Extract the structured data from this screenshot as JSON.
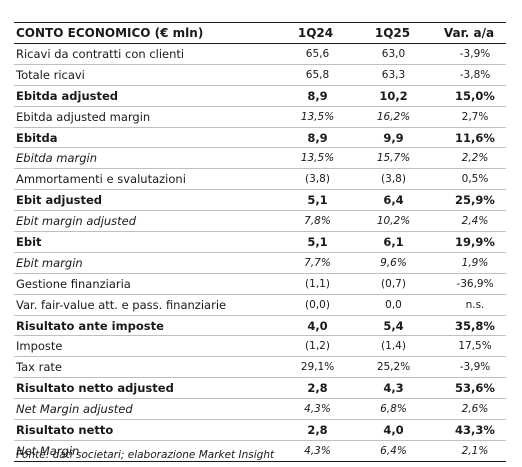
{
  "table": {
    "headers": [
      "CONTO ECONOMICO (€ mln)",
      "1Q24",
      "1Q25",
      "Var. a/a"
    ],
    "rows": [
      {
        "label": "Ricavi da contratti con clienti",
        "v1": "65,6",
        "v2": "63,0",
        "v3": "-3,9%",
        "style": "normal"
      },
      {
        "label": "Totale ricavi",
        "v1": "65,8",
        "v2": "63,3",
        "v3": "-3,8%",
        "style": "normal"
      },
      {
        "label": "Ebitda adjusted",
        "v1": "8,9",
        "v2": "10,2",
        "v3": "15,0%",
        "style": "bold"
      },
      {
        "label": "Ebitda adjusted margin",
        "v1": "13,5%",
        "v2": "16,2%",
        "v3": "2,7%",
        "style": "normal-italic-nums"
      },
      {
        "label": "Ebitda",
        "v1": "8,9",
        "v2": "9,9",
        "v3": "11,6%",
        "style": "bold"
      },
      {
        "label": "Ebitda margin",
        "v1": "13,5%",
        "v2": "15,7%",
        "v3": "2,2%",
        "style": "italic"
      },
      {
        "label": "Ammortamenti e svalutazioni",
        "v1": "(3,8)",
        "v2": "(3,8)",
        "v3": "0,5%",
        "style": "normal"
      },
      {
        "label": "Ebit adjusted",
        "v1": "5,1",
        "v2": "6,4",
        "v3": "25,9%",
        "style": "bold"
      },
      {
        "label": "Ebit margin adjusted",
        "v1": "7,8%",
        "v2": "10,2%",
        "v3": "2,4%",
        "style": "italic"
      },
      {
        "label": "Ebit",
        "v1": "5,1",
        "v2": "6,1",
        "v3": "19,9%",
        "style": "bold"
      },
      {
        "label": "Ebit margin",
        "v1": "7,7%",
        "v2": "9,6%",
        "v3": "1,9%",
        "style": "italic"
      },
      {
        "label": "Gestione finanziaria",
        "v1": "(1,1)",
        "v2": "(0,7)",
        "v3": "-36,9%",
        "style": "normal"
      },
      {
        "label": "Var. fair-value att. e pass. finanziarie",
        "v1": "(0,0)",
        "v2": "0,0",
        "v3": "n.s.",
        "style": "normal"
      },
      {
        "label": "Risultato ante imposte",
        "v1": "4,0",
        "v2": "5,4",
        "v3": "35,8%",
        "style": "bold"
      },
      {
        "label": "Imposte",
        "v1": "(1,2)",
        "v2": "(1,4)",
        "v3": "17,5%",
        "style": "normal"
      },
      {
        "label": "Tax rate",
        "v1": "29,1%",
        "v2": "25,2%",
        "v3": "-3,9%",
        "style": "normal"
      },
      {
        "label": "Risultato netto adjusted",
        "v1": "2,8",
        "v2": "4,3",
        "v3": "53,6%",
        "style": "bold"
      },
      {
        "label": "Net Margin adjusted",
        "v1": "4,3%",
        "v2": "6,8%",
        "v3": "2,6%",
        "style": "italic"
      },
      {
        "label": "Risultato netto",
        "v1": "2,8",
        "v2": "4,0",
        "v3": "43,3%",
        "style": "bold"
      },
      {
        "label": "Net Margin",
        "v1": "4,3%",
        "v2": "6,4%",
        "v3": "2,1%",
        "style": "italic"
      }
    ]
  },
  "footnote": "Fonte: dati societari; elaborazione Market Insight"
}
